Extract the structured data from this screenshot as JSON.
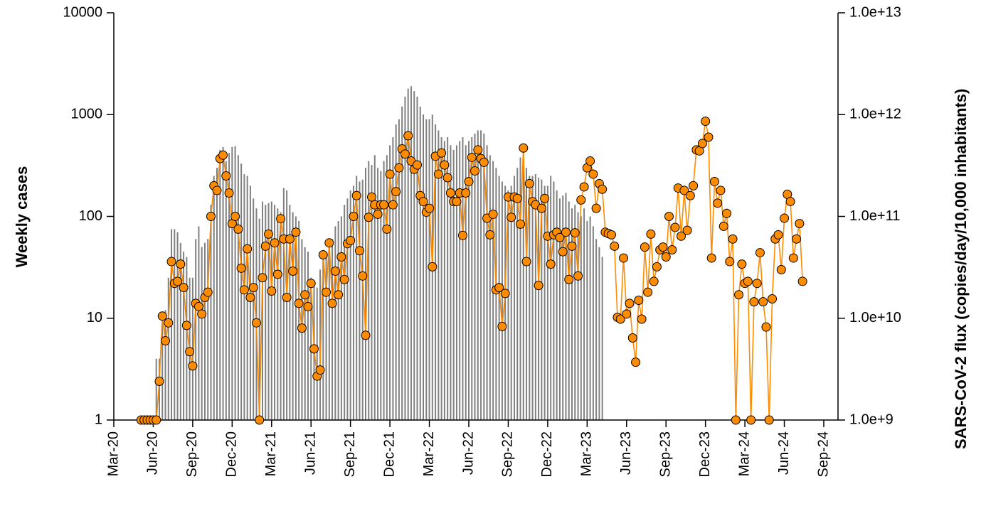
{
  "chart_data": {
    "type": "combo",
    "ylabel": "Weekly cases",
    "y2label": "SARS-CoV-2 flux (copies/day/10,000 inhabitants)",
    "ylim": [
      1,
      10000
    ],
    "yticks": [
      1,
      10,
      100,
      1000,
      10000
    ],
    "ylog": true,
    "y2lim": [
      1000000000.0,
      10000000000000.0
    ],
    "y2log": true,
    "y2ticks": [
      {
        "value": 1000000000.0,
        "label": "1.0e+9"
      },
      {
        "value": 10000000000.0,
        "label": "1.0e+10"
      },
      {
        "value": 100000000000.0,
        "label": "1.0e+11"
      },
      {
        "value": 1000000000000.0,
        "label": "1.0e+12"
      },
      {
        "value": 10000000000000.0,
        "label": "1.0e+13"
      }
    ],
    "grid": false,
    "categories": [
      "Mar-20",
      null,
      null,
      null,
      null,
      null,
      null,
      null,
      null,
      null,
      null,
      null,
      null,
      "Jun-20",
      null,
      null,
      null,
      null,
      null,
      null,
      null,
      null,
      null,
      null,
      null,
      null,
      "Sep-20",
      null,
      null,
      null,
      null,
      null,
      null,
      null,
      null,
      null,
      null,
      null,
      null,
      "Dec-20",
      null,
      null,
      null,
      null,
      null,
      null,
      null,
      null,
      null,
      null,
      null,
      null,
      "Mar-21",
      null,
      null,
      null,
      null,
      null,
      null,
      null,
      null,
      null,
      null,
      null,
      null,
      "Jun-21",
      null,
      null,
      null,
      null,
      null,
      null,
      null,
      null,
      null,
      null,
      null,
      null,
      "Sep-21",
      null,
      null,
      null,
      null,
      null,
      null,
      null,
      null,
      null,
      null,
      null,
      null,
      "Dec-21",
      null,
      null,
      null,
      null,
      null,
      null,
      null,
      null,
      null,
      null,
      null,
      null,
      "Mar-22",
      null,
      null,
      null,
      null,
      null,
      null,
      null,
      null,
      null,
      null,
      null,
      null,
      "Jun-22",
      null,
      null,
      null,
      null,
      null,
      null,
      null,
      null,
      null,
      null,
      null,
      null,
      "Sep-22",
      null,
      null,
      null,
      null,
      null,
      null,
      null,
      null,
      null,
      null,
      null,
      null,
      "Dec-22",
      null,
      null,
      null,
      null,
      null,
      null,
      null,
      null,
      null,
      null,
      null,
      null,
      "Mar-23",
      null,
      null,
      null,
      null,
      null,
      null,
      null,
      null,
      null,
      null,
      null,
      null,
      "Jun-23",
      null,
      null,
      null,
      null,
      null,
      null,
      null,
      null,
      null,
      null,
      null,
      null,
      "Sep-23",
      null,
      null,
      null,
      null,
      null,
      null,
      null,
      null,
      null,
      null,
      null,
      null,
      "Dec-23",
      null,
      null,
      null,
      null,
      null,
      null,
      null,
      null,
      null,
      null,
      null,
      null,
      "Mar-24",
      null,
      null,
      null,
      null,
      null,
      null,
      null,
      null,
      null,
      null,
      null,
      null,
      "Jun-24",
      null,
      null,
      null,
      null,
      null,
      null,
      null,
      null,
      null,
      null,
      null,
      null,
      "Sep-24"
    ],
    "series": [
      {
        "type": "bar",
        "color": "#808080",
        "values": [
          null,
          null,
          null,
          null,
          null,
          null,
          null,
          null,
          null,
          null,
          null,
          null,
          null,
          null,
          4,
          4,
          10,
          12,
          25,
          75,
          75,
          70,
          55,
          45,
          40,
          25,
          25,
          60,
          80,
          50,
          55,
          60,
          130,
          250,
          300,
          450,
          480,
          350,
          420,
          480,
          490,
          400,
          330,
          260,
          250,
          200,
          150,
          120,
          95,
          140,
          130,
          135,
          140,
          130,
          120,
          110,
          190,
          180,
          130,
          110,
          100,
          90,
          60,
          50,
          45,
          25,
          22,
          20,
          30,
          40,
          40,
          55,
          60,
          80,
          90,
          100,
          130,
          150,
          180,
          200,
          250,
          220,
          230,
          300,
          350,
          320,
          400,
          300,
          280,
          350,
          400,
          500,
          600,
          800,
          900,
          1200,
          1500,
          1800,
          1900,
          1700,
          1500,
          1200,
          1000,
          900,
          900,
          1000,
          800,
          700,
          600,
          550,
          600,
          500,
          450,
          500,
          550,
          600,
          500,
          550,
          600,
          650,
          700,
          700,
          650,
          500,
          400,
          350,
          300,
          250,
          220,
          200,
          180,
          200,
          250,
          300,
          380,
          350,
          300,
          250,
          250,
          260,
          240,
          230,
          200,
          200,
          250,
          220,
          180,
          150,
          160,
          170,
          140,
          120,
          130,
          110,
          100,
          120,
          90,
          100,
          80,
          60,
          50,
          40,
          null,
          null,
          null,
          null,
          null,
          null,
          null,
          null,
          null,
          null,
          null,
          null,
          null,
          null,
          null,
          null,
          null,
          null,
          null,
          null,
          null,
          null,
          null,
          null,
          null,
          null,
          null,
          null,
          null,
          null,
          null,
          null,
          null,
          null,
          null,
          null,
          null,
          null,
          null,
          null,
          null,
          null,
          null,
          null,
          null,
          null,
          null,
          null,
          null,
          null,
          null,
          null,
          null,
          null,
          null,
          null,
          null,
          null,
          null,
          null,
          null,
          null,
          null,
          null,
          null,
          null,
          null,
          null,
          null,
          null,
          null,
          null,
          null
        ]
      },
      {
        "type": "line",
        "axis": "y2",
        "color": "#ff8c00",
        "marker_color": "#ff8c00",
        "values": [
          null,
          null,
          null,
          null,
          null,
          null,
          null,
          null,
          null,
          1000000000.0,
          1000000000.0,
          1000000000.0,
          1000000000.0,
          1000000000.0,
          1000000000.0,
          2400000000.0,
          10500000000.0,
          6000000000.0,
          9000000000.0,
          36000000000.0,
          22000000000.0,
          23000000000.0,
          34000000000.0,
          20000000000.0,
          8500000000.0,
          4700000000.0,
          3400000000.0,
          14000000000.0,
          13000000000.0,
          11000000000.0,
          16000000000.0,
          18000000000.0,
          100000000000.0,
          200000000000.0,
          180000000000.0,
          370000000000.0,
          400000000000.0,
          250000000000.0,
          170000000000.0,
          85000000000.0,
          100000000000.0,
          75000000000.0,
          31000000000.0,
          19000000000.0,
          48000000000.0,
          16000000000.0,
          20000000000.0,
          9000000000.0,
          1000000000.0,
          25000000000.0,
          51000000000.0,
          67000000000.0,
          18500000000.0,
          55000000000.0,
          27000000000.0,
          95000000000.0,
          60000000000.0,
          16000000000.0,
          60000000000.0,
          29000000000.0,
          70000000000.0,
          14000000000.0,
          8000000000.0,
          17000000000.0,
          13000000000.0,
          22000000000.0,
          5000000000.0,
          2700000000.0,
          3100000000.0,
          42000000000.0,
          18000000000.0,
          55000000000.0,
          14000000000.0,
          29000000000.0,
          17000000000.0,
          40000000000.0,
          24000000000.0,
          54000000000.0,
          58000000000.0,
          100000000000.0,
          160000000000.0,
          46000000000.0,
          26000000000.0,
          6800000000.0,
          98000000000.0,
          155000000000.0,
          130000000000.0,
          105000000000.0,
          130000000000.0,
          130000000000.0,
          75000000000.0,
          260000000000.0,
          130000000000.0,
          175000000000.0,
          300000000000.0,
          460000000000.0,
          410000000000.0,
          620000000000.0,
          350000000000.0,
          290000000000.0,
          320000000000.0,
          160000000000.0,
          140000000000.0,
          110000000000.0,
          120000000000.0,
          32000000000.0,
          390000000000.0,
          260000000000.0,
          420000000000.0,
          320000000000.0,
          240000000000.0,
          170000000000.0,
          140000000000.0,
          140000000000.0,
          170000000000.0,
          65000000000.0,
          170000000000.0,
          220000000000.0,
          380000000000.0,
          280000000000.0,
          450000000000.0,
          370000000000.0,
          340000000000.0,
          96000000000.0,
          66000000000.0,
          105000000000.0,
          19000000000.0,
          20000000000.0,
          8300000000.0,
          17500000000.0,
          155000000000.0,
          98000000000.0,
          155000000000.0,
          150000000000.0,
          84000000000.0,
          470000000000.0,
          36000000000.0,
          210000000000.0,
          140000000000.0,
          130000000000.0,
          21000000000.0,
          120000000000.0,
          150000000000.0,
          64000000000.0,
          34000000000.0,
          66000000000.0,
          70000000000.0,
          62000000000.0,
          45000000000.0,
          70000000000.0,
          24000000000.0,
          51000000000.0,
          69000000000.0,
          26000000000.0,
          145000000000.0,
          195000000000.0,
          300000000000.0,
          350000000000.0,
          260000000000.0,
          120000000000.0,
          210000000000.0,
          185000000000.0,
          70000000000.0,
          68000000000.0,
          66000000000.0,
          51000000000.0,
          10200000000.0,
          9800000000.0,
          39000000000.0,
          11000000000.0,
          14000000000.0,
          6400000000.0,
          3700000000.0,
          15000000000.0,
          9800000000.0,
          50000000000.0,
          18000000000.0,
          67000000000.0,
          23000000000.0,
          32000000000.0,
          47000000000.0,
          50000000000.0,
          40000000000.0,
          100000000000.0,
          47000000000.0,
          78000000000.0,
          190000000000.0,
          64000000000.0,
          180000000000.0,
          73000000000.0,
          160000000000.0,
          200000000000.0,
          450000000000.0,
          440000000000.0,
          520000000000.0,
          860000000000.0,
          600000000000.0,
          39000000000.0,
          220000000000.0,
          135000000000.0,
          180000000000.0,
          80000000000.0,
          107000000000.0,
          36000000000.0,
          60000000000.0,
          1000000000.0,
          17000000000.0,
          34000000000.0,
          22000000000.0,
          23000000000.0,
          1000000000.0,
          14500000000.0,
          22000000000.0,
          44000000000.0,
          14500000000.0,
          8200000000.0,
          1000000000.0,
          15500000000.0,
          60000000000.0,
          66000000000.0,
          30000000000.0,
          96000000000.0,
          165000000000.0,
          140000000000.0,
          39000000000.0,
          60000000000.0,
          85000000000.0,
          23000000000.0,
          null,
          null,
          null,
          null,
          null,
          null,
          null
        ]
      }
    ]
  }
}
